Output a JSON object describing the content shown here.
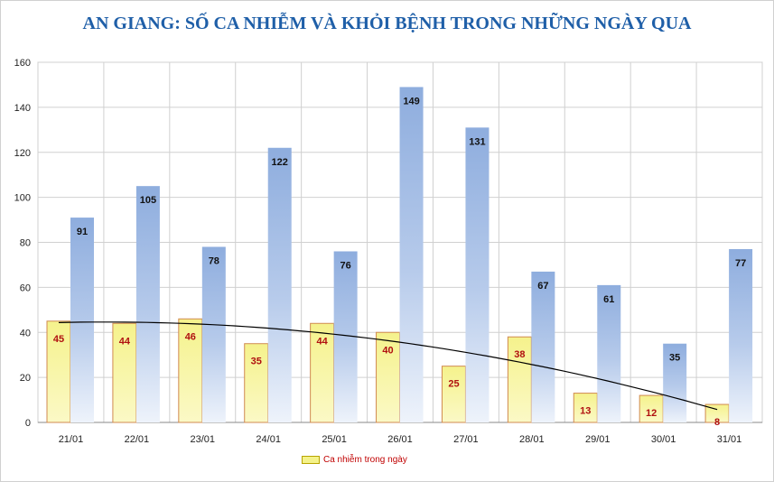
{
  "chart_data": {
    "type": "bar",
    "title": "AN GIANG: SỐ CA NHIỄM VÀ KHỎI BỆNH TRONG NHỮNG NGÀY QUA",
    "categories": [
      "21/01",
      "22/01",
      "23/01",
      "24/01",
      "25/01",
      "26/01",
      "27/01",
      "28/01",
      "29/01",
      "30/01",
      "31/01"
    ],
    "series": [
      {
        "name": "Ca nhiễm trong ngày",
        "values": [
          45,
          44,
          46,
          35,
          44,
          40,
          25,
          38,
          13,
          12,
          8
        ],
        "color": "#f4f28a",
        "border": "#d08a50"
      },
      {
        "name": "",
        "values": [
          91,
          105,
          78,
          122,
          76,
          149,
          131,
          67,
          61,
          35,
          77
        ],
        "color": "#8eadde"
      }
    ],
    "trendline": {
      "type": "polynomial",
      "color": "#000000"
    },
    "ylim": [
      0,
      160
    ],
    "yticks": [
      0,
      20,
      40,
      60,
      80,
      100,
      120,
      140,
      160
    ],
    "grid": true,
    "legend": "bottom-center",
    "xlabel": "",
    "ylabel": ""
  }
}
